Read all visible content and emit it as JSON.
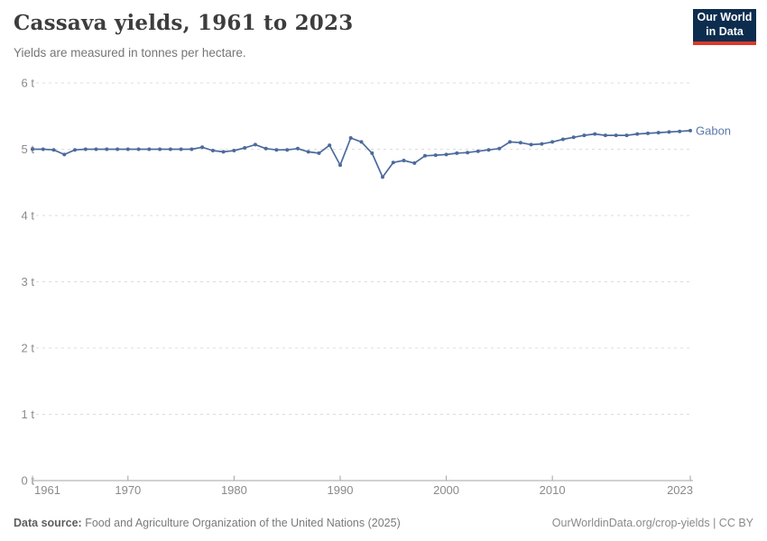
{
  "header": {
    "title": "Cassava yields, 1961 to 2023",
    "subtitle": "Yields are measured in tonnes per hectare."
  },
  "logo": {
    "line1": "Our World",
    "line2": "in Data"
  },
  "colors": {
    "line": "#4c6a9c",
    "entity_label": "#5b79ab",
    "logo_bg": "#0d2d4f",
    "logo_accent": "#d93a2b",
    "grid": "#dcdcdc",
    "axis": "#a3a3a3",
    "tick_label": "#8a8a8a"
  },
  "chart_data": {
    "type": "line",
    "title": "Cassava yields, 1961 to 2023",
    "subtitle": "Yields are measured in tonnes per hectare.",
    "unit": "tonnes per hectare",
    "xlim": [
      1961,
      2023
    ],
    "ylim": [
      0,
      6
    ],
    "grid": "horizontal-dashed",
    "legend_position": "line-end-label",
    "xticks": [
      1961,
      1970,
      1980,
      1990,
      2000,
      2010,
      2023
    ],
    "yticks": [
      0,
      1,
      2,
      3,
      4,
      5,
      6
    ],
    "ytick_suffix": " t",
    "xlabel": "",
    "ylabel": "",
    "series": [
      {
        "name": "Gabon",
        "x": [
          1961,
          1962,
          1963,
          1964,
          1965,
          1966,
          1967,
          1968,
          1969,
          1970,
          1971,
          1972,
          1973,
          1974,
          1975,
          1976,
          1977,
          1978,
          1979,
          1980,
          1981,
          1982,
          1983,
          1984,
          1985,
          1986,
          1987,
          1988,
          1989,
          1990,
          1991,
          1992,
          1993,
          1994,
          1995,
          1996,
          1997,
          1998,
          1999,
          2000,
          2001,
          2002,
          2003,
          2004,
          2005,
          2006,
          2007,
          2008,
          2009,
          2010,
          2011,
          2012,
          2013,
          2014,
          2015,
          2016,
          2017,
          2018,
          2019,
          2020,
          2021,
          2022,
          2023
        ],
        "values": [
          5.0,
          5.0,
          4.99,
          4.92,
          4.99,
          5.0,
          5.0,
          5.0,
          5.0,
          5.0,
          5.0,
          5.0,
          5.0,
          5.0,
          5.0,
          5.0,
          5.03,
          4.98,
          4.96,
          4.98,
          5.02,
          5.07,
          5.01,
          4.99,
          4.99,
          5.01,
          4.96,
          4.94,
          5.06,
          4.76,
          5.17,
          5.11,
          4.94,
          4.58,
          4.8,
          4.83,
          4.79,
          4.9,
          4.91,
          4.92,
          4.94,
          4.95,
          4.97,
          4.99,
          5.01,
          5.11,
          5.1,
          5.07,
          5.08,
          5.11,
          5.15,
          5.18,
          5.21,
          5.23,
          5.21,
          5.21,
          5.21,
          5.23,
          5.24,
          5.25,
          5.26,
          5.27,
          5.28
        ]
      }
    ]
  },
  "footer": {
    "source_label": "Data source:",
    "source_text": "Food and Agriculture Organization of the United Nations (2025)",
    "credit": "OurWorldinData.org/crop-yields | CC BY"
  }
}
